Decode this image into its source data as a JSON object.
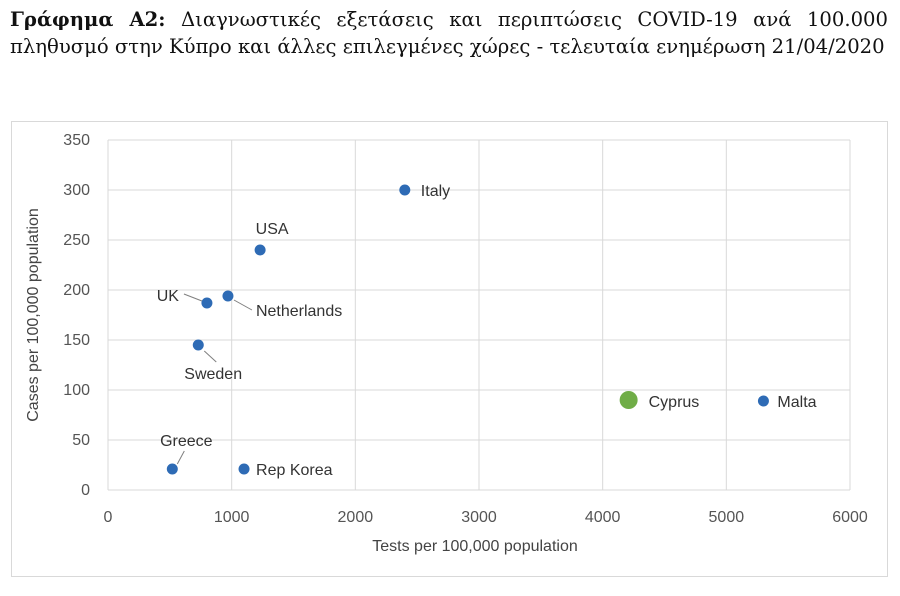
{
  "heading": {
    "prefix": "Γράφημα Α2:",
    "text": "Διαγνωστικές εξετάσεις και περιπτώσεις COVID-19 ανά 100.000 πληθυσμό στην Κύπρο και άλλες επιλεγμένες χώρες - τελευταία ενημέρωση 21/04/2020"
  },
  "colors": {
    "point": "#2e6bb5",
    "highlight": "#70ad47",
    "grid": "#d9d9d9",
    "leader": "#7f7f7f"
  },
  "chart_data": {
    "type": "scatter",
    "xlabel": "Tests per 100,000 population",
    "ylabel": "Cases per 100,000 population",
    "xlim": [
      0,
      6000
    ],
    "ylim": [
      0,
      350
    ],
    "xticks": [
      0,
      1000,
      2000,
      3000,
      4000,
      5000,
      6000
    ],
    "yticks": [
      0,
      50,
      100,
      150,
      200,
      250,
      300,
      350
    ],
    "grid": true,
    "points": [
      {
        "label": "Italy",
        "x": 2400,
        "y": 300,
        "highlight": false
      },
      {
        "label": "USA",
        "x": 1230,
        "y": 240,
        "highlight": false
      },
      {
        "label": "UK",
        "x": 800,
        "y": 187,
        "highlight": false
      },
      {
        "label": "Netherlands",
        "x": 970,
        "y": 194,
        "highlight": false
      },
      {
        "label": "Sweden",
        "x": 730,
        "y": 145,
        "highlight": false
      },
      {
        "label": "Greece",
        "x": 520,
        "y": 21,
        "highlight": false
      },
      {
        "label": "Rep Korea",
        "x": 1100,
        "y": 21,
        "highlight": false
      },
      {
        "label": "Cyprus",
        "x": 4210,
        "y": 90,
        "highlight": true
      },
      {
        "label": "Malta",
        "x": 5300,
        "y": 89,
        "highlight": false
      }
    ]
  }
}
